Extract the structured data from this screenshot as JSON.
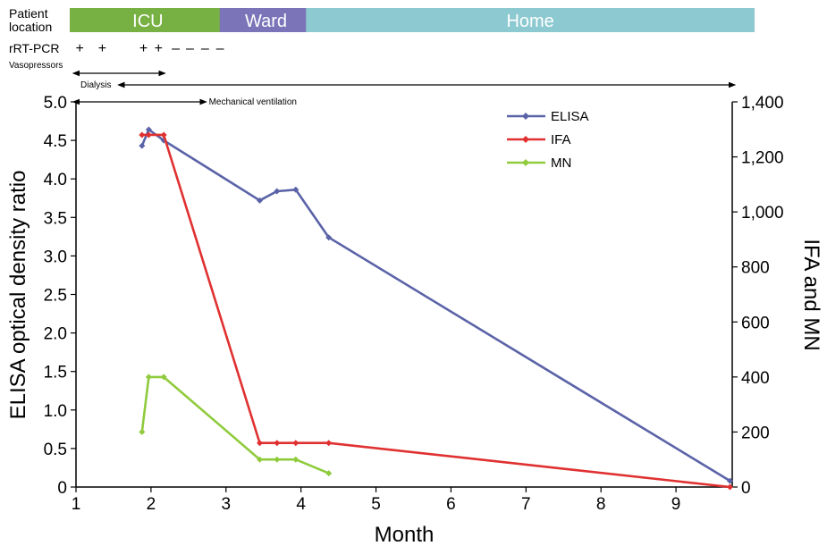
{
  "chart_data": {
    "type": "line",
    "xlabel": "Month",
    "ylabel": "ELISA optical density ratio",
    "y2label": "IFA and MN",
    "xlim": [
      1,
      9.75
    ],
    "ylim": [
      0,
      5.0
    ],
    "y2lim": [
      0,
      1400
    ],
    "x_ticks": [
      1,
      2,
      3,
      4,
      5,
      6,
      7,
      8,
      9
    ],
    "y_ticks": [
      0,
      0.5,
      1.0,
      1.5,
      2.0,
      2.5,
      3.0,
      3.5,
      4.0,
      4.5,
      5.0
    ],
    "y_tick_labels": [
      "0",
      "0.5",
      "1.0",
      "1.5",
      "2.0",
      "2.5",
      "3.0",
      "3.5",
      "4.0",
      "4.5",
      "5.0"
    ],
    "y2_ticks": [
      0,
      200,
      400,
      600,
      800,
      1000,
      1200,
      1400
    ],
    "y2_tick_labels": [
      "0",
      "200",
      "400",
      "600",
      "800",
      "1,000",
      "1,200",
      "1,400"
    ],
    "legend_position": "top-right",
    "grid": false,
    "series": [
      {
        "name": "ELISA",
        "axis": "left",
        "color": "#5b63a8",
        "x": [
          1.88,
          1.97,
          2.17,
          3.45,
          3.68,
          3.93,
          4.37,
          9.72
        ],
        "y": [
          4.43,
          4.64,
          4.5,
          3.72,
          3.84,
          3.86,
          3.24,
          0.08
        ]
      },
      {
        "name": "IFA",
        "axis": "right",
        "color": "#e03030",
        "x": [
          1.88,
          1.97,
          2.17,
          3.45,
          3.68,
          3.93,
          4.37,
          9.72
        ],
        "y": [
          1280,
          1280,
          1280,
          160,
          160,
          160,
          160,
          0
        ]
      },
      {
        "name": "MN",
        "axis": "right",
        "color": "#8fcb3c",
        "x": [
          1.88,
          1.97,
          2.17,
          3.45,
          3.68,
          3.93,
          4.37
        ],
        "y": [
          200,
          400,
          400,
          100,
          100,
          100,
          50
        ]
      }
    ],
    "timeline": {
      "location_label": [
        "Patient",
        "location"
      ],
      "segments": [
        {
          "label": "ICU",
          "start": 1.0,
          "end": 3.0,
          "color": "#77b043"
        },
        {
          "label": "Ward",
          "start": 3.0,
          "end": 4.15,
          "color": "#7b74b8"
        },
        {
          "label": "Home",
          "start": 4.15,
          "end": 9.75,
          "color": "#8cc9d0"
        }
      ],
      "pcr_label": "rRT-PCR",
      "pcr_results": [
        {
          "x": 1.05,
          "sign": "+"
        },
        {
          "x": 1.35,
          "sign": "+"
        },
        {
          "x": 1.9,
          "sign": "+"
        },
        {
          "x": 2.1,
          "sign": "+"
        },
        {
          "x": 2.33,
          "sign": "–"
        },
        {
          "x": 2.52,
          "sign": "–"
        },
        {
          "x": 2.72,
          "sign": "–"
        },
        {
          "x": 2.92,
          "sign": "–"
        }
      ],
      "treatments": [
        {
          "label": "Vasopressors",
          "start": 1.0,
          "end": 2.15,
          "label_pos": "above-left"
        },
        {
          "label": "Dialysis",
          "start": 1.6,
          "end": 9.75,
          "label_pos": "left"
        },
        {
          "label": "Mechanical ventilation",
          "start": 1.0,
          "end": 2.7,
          "label_pos": "right"
        }
      ]
    }
  }
}
